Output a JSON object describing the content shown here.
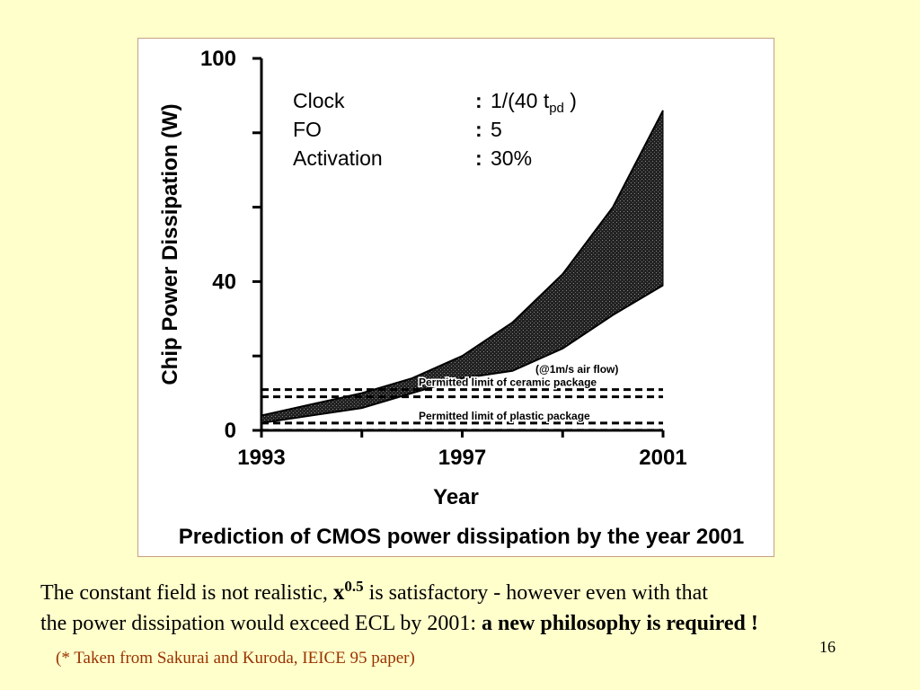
{
  "chart_data": {
    "type": "area",
    "title": "Prediction of CMOS power dissipation by the year 2001",
    "xlabel": "Year",
    "ylabel": "Chip Power Dissipation (W)",
    "xlim": [
      1993,
      2001
    ],
    "ylim": [
      0,
      100
    ],
    "x_tick_labels": [
      "1993",
      "1997",
      "2001"
    ],
    "x_ticks": [
      1993,
      1997,
      2001
    ],
    "y_tick_labels": [
      "0",
      "40",
      "100"
    ],
    "y_ticks": [
      0,
      40,
      100
    ],
    "y_minor_ticks": [
      20,
      60,
      80
    ],
    "x_minor_ticks": [
      1995,
      1999
    ],
    "parameters": [
      {
        "name": "Clock",
        "value": "1/(40 t",
        "subscript": "pd",
        "suffix": " )"
      },
      {
        "name": "FO",
        "value": "5"
      },
      {
        "name": "Activation",
        "value": "30%"
      }
    ],
    "series": [
      {
        "role": "upper",
        "x": [
          1993,
          1994,
          1995,
          1996,
          1997,
          1998,
          1999,
          2000,
          2001
        ],
        "y": [
          4,
          7,
          10,
          14,
          20,
          29,
          42,
          60,
          86
        ]
      },
      {
        "role": "lower",
        "x": [
          1993,
          1994,
          1995,
          1996,
          1997,
          1998,
          1999,
          2000,
          2001
        ],
        "y": [
          2,
          4,
          6,
          10,
          14,
          16,
          22,
          31,
          39
        ]
      }
    ],
    "reference_lines": [
      {
        "y": 10,
        "style": "dashed",
        "label": "Permitted limit of ceramic package"
      },
      {
        "y": 1,
        "style": "dashed",
        "label": "Permitted limit of plastic package"
      }
    ],
    "annotations": [
      {
        "text": "(@1m/s air flow)"
      }
    ]
  },
  "caption": {
    "line1_before": "The constant field is not realistic, ",
    "x_base": "x",
    "x_exponent": "0.5",
    "line1_after": " is satisfactory - however even with that",
    "line2_plain": "the power dissipation would exceed ECL by 2001: ",
    "line2_bold": "a new philosophy is required !"
  },
  "page_number": "16",
  "citation": "(* Taken from Sakurai and Kuroda, IEICE 95 paper)",
  "colors": {
    "background": "#ffffcc",
    "band_fill": "#222222",
    "citation": "#993300"
  }
}
